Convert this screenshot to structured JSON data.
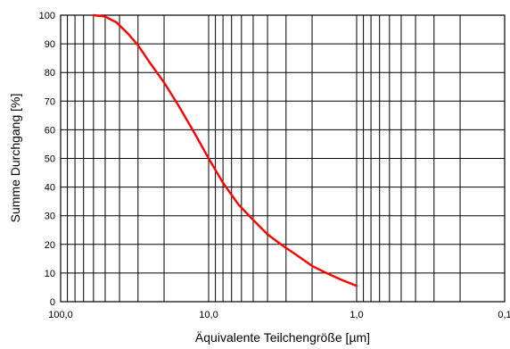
{
  "chart_data": {
    "type": "line",
    "title": "",
    "xlabel": "Äquivalente Teilchengröße [µm]",
    "ylabel": "Summe Durchgang [%]",
    "x_scale": "log",
    "x_reversed": true,
    "xlim": [
      100,
      0.1
    ],
    "ylim": [
      0,
      100
    ],
    "x_ticks": [
      100,
      10,
      1,
      0.1
    ],
    "x_tick_labels": [
      "100,0",
      "10,0",
      "1,0",
      "0,1"
    ],
    "y_ticks": [
      0,
      10,
      20,
      30,
      40,
      50,
      60,
      70,
      80,
      90,
      100
    ],
    "y_tick_labels": [
      "0",
      "10",
      "20",
      "30",
      "40",
      "50",
      "60",
      "70",
      "80",
      "90",
      "100"
    ],
    "grid": true,
    "legend": "none",
    "series": [
      {
        "color": "#ff0000",
        "x": [
          60,
          50,
          42,
          35,
          30,
          25,
          20,
          16,
          12.5,
          10,
          8,
          6.3,
          5,
          4,
          3.15,
          2.5,
          2,
          1.6,
          1.25,
          1.0
        ],
        "y": [
          100,
          99.5,
          97.5,
          93.5,
          89.5,
          83.5,
          76.5,
          68.5,
          59,
          50,
          41.5,
          34,
          28.5,
          23.5,
          19.5,
          16,
          12.5,
          10,
          7.5,
          5.5
        ]
      }
    ]
  }
}
